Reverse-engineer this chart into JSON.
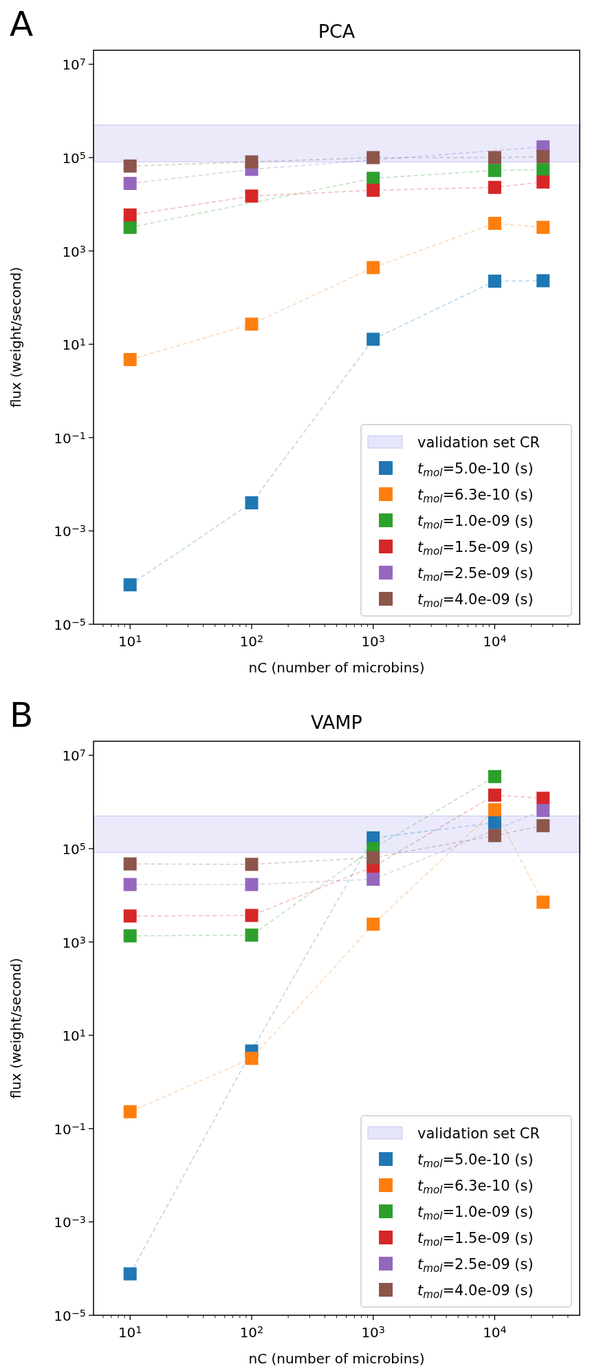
{
  "chart_data": [
    {
      "type": "line",
      "title": "PCA",
      "xlabel": "nC (number of microbins)",
      "ylabel": "flux (weight/second)",
      "annotations": [
        "A"
      ],
      "x": [
        10,
        100,
        1000,
        10000,
        25000
      ],
      "log": "xy",
      "legend": "bottom right",
      "marker": "square",
      "line_style": "dashed",
      "xlim": [
        5,
        50000
      ],
      "ylim": [
        1e-05,
        20000000.0
      ],
      "xticks": [
        {
          "value": 6,
          "label": null
        },
        {
          "value": 7,
          "label": null
        },
        {
          "value": 8,
          "label": null
        },
        {
          "value": 9,
          "label": null
        },
        {
          "value": 10,
          "label": "10$^{1}$"
        },
        {
          "value": 20,
          "label": null
        },
        {
          "value": 30,
          "label": null
        },
        {
          "value": 40,
          "label": null
        },
        {
          "value": 50,
          "label": null
        },
        {
          "value": 60,
          "label": null
        },
        {
          "value": 70,
          "label": null
        },
        {
          "value": 80,
          "label": null
        },
        {
          "value": 90,
          "label": null
        },
        {
          "value": 100,
          "label": "10$^{2}$"
        },
        {
          "value": 200,
          "label": null
        },
        {
          "value": 300,
          "label": null
        },
        {
          "value": 400,
          "label": null
        },
        {
          "value": 500,
          "label": null
        },
        {
          "value": 600,
          "label": null
        },
        {
          "value": 700,
          "label": null
        },
        {
          "value": 800,
          "label": null
        },
        {
          "value": 900,
          "label": null
        },
        {
          "value": 1000,
          "label": "10$^{3}$"
        },
        {
          "value": 2000,
          "label": null
        },
        {
          "value": 3000,
          "label": null
        },
        {
          "value": 4000,
          "label": null
        },
        {
          "value": 5000,
          "label": null
        },
        {
          "value": 6000,
          "label": null
        },
        {
          "value": 7000,
          "label": null
        },
        {
          "value": 8000,
          "label": null
        },
        {
          "value": 9000,
          "label": null
        },
        {
          "value": 10000,
          "label": "10$^{4}$"
        },
        {
          "value": 20000,
          "label": null
        },
        {
          "value": 30000,
          "label": null
        },
        {
          "value": 40000,
          "label": null
        }
      ],
      "yticks": [
        {
          "value": 1e-05,
          "label": "10$^{−5}$"
        },
        {
          "value": 0.001,
          "label": "10$^{−3}$"
        },
        {
          "value": 0.1,
          "label": "10$^{−1}$"
        },
        {
          "value": 10,
          "label": "10$^{1}$"
        },
        {
          "value": 1000,
          "label": "10$^{3}$"
        },
        {
          "value": 100000,
          "label": "10$^{5}$"
        },
        {
          "value": 10000000,
          "label": "10$^{7}$"
        }
      ],
      "bands": [
        {
          "axis": "y",
          "from": 81000,
          "to": 500000,
          "label": "validation set CR",
          "color": "#e6e6fa"
        }
      ],
      "series": [
        {
          "name": "t$_{mol}$=5.0e-10 (s)",
          "color": "#1f77b4",
          "values": [
            7e-05,
            0.004,
            12.8,
            225,
            230
          ]
        },
        {
          "name": "t$_{mol}$=6.3e-10 (s)",
          "color": "#ff7f0e",
          "values": [
            4.7,
            27,
            440,
            3900,
            3200
          ]
        },
        {
          "name": "t$_{mol}$=1.0e-09 (s)",
          "color": "#2ca02c",
          "values": [
            3200,
            null,
            36000,
            53000,
            55000
          ]
        },
        {
          "name": "t$_{mol}$=1.5e-09 (s)",
          "color": "#d62728",
          "values": [
            5900,
            15000,
            20000,
            23000,
            30000
          ]
        },
        {
          "name": "t$_{mol}$=2.5e-09 (s)",
          "color": "#9467bd",
          "values": [
            28000,
            56000,
            null,
            null,
            170000
          ]
        },
        {
          "name": "t$_{mol}$=4.0e-09 (s)",
          "color": "#8c564b",
          "values": [
            66000,
            81000,
            100000,
            100000,
            105000
          ]
        }
      ]
    },
    {
      "type": "line",
      "title": "VAMP",
      "xlabel": "nC (number of microbins)",
      "ylabel": "flux (weight/second)",
      "annotations": [
        "B"
      ],
      "x": [
        10,
        100,
        1000,
        10000,
        25000
      ],
      "log": "xy",
      "legend": "bottom right",
      "marker": "square",
      "line_style": "dashed",
      "xlim": [
        5,
        50000
      ],
      "ylim": [
        1e-05,
        20000000.0
      ],
      "xticks": [
        {
          "value": 6,
          "label": null
        },
        {
          "value": 7,
          "label": null
        },
        {
          "value": 8,
          "label": null
        },
        {
          "value": 9,
          "label": null
        },
        {
          "value": 10,
          "label": "10$^{1}$"
        },
        {
          "value": 20,
          "label": null
        },
        {
          "value": 30,
          "label": null
        },
        {
          "value": 40,
          "label": null
        },
        {
          "value": 50,
          "label": null
        },
        {
          "value": 60,
          "label": null
        },
        {
          "value": 70,
          "label": null
        },
        {
          "value": 80,
          "label": null
        },
        {
          "value": 90,
          "label": null
        },
        {
          "value": 100,
          "label": "10$^{2}$"
        },
        {
          "value": 200,
          "label": null
        },
        {
          "value": 300,
          "label": null
        },
        {
          "value": 400,
          "label": null
        },
        {
          "value": 500,
          "label": null
        },
        {
          "value": 600,
          "label": null
        },
        {
          "value": 700,
          "label": null
        },
        {
          "value": 800,
          "label": null
        },
        {
          "value": 900,
          "label": null
        },
        {
          "value": 1000,
          "label": "10$^{3}$"
        },
        {
          "value": 2000,
          "label": null
        },
        {
          "value": 3000,
          "label": null
        },
        {
          "value": 4000,
          "label": null
        },
        {
          "value": 5000,
          "label": null
        },
        {
          "value": 6000,
          "label": null
        },
        {
          "value": 7000,
          "label": null
        },
        {
          "value": 8000,
          "label": null
        },
        {
          "value": 9000,
          "label": null
        },
        {
          "value": 10000,
          "label": "10$^{4}$"
        },
        {
          "value": 20000,
          "label": null
        },
        {
          "value": 30000,
          "label": null
        },
        {
          "value": 40000,
          "label": null
        }
      ],
      "yticks": [
        {
          "value": 1e-05,
          "label": "10$^{−5}$"
        },
        {
          "value": 0.001,
          "label": "10$^{−3}$"
        },
        {
          "value": 0.1,
          "label": "10$^{−1}$"
        },
        {
          "value": 10,
          "label": "10$^{1}$"
        },
        {
          "value": 1000,
          "label": "10$^{3}$"
        },
        {
          "value": 100000,
          "label": "10$^{5}$"
        },
        {
          "value": 10000000,
          "label": "10$^{7}$"
        }
      ],
      "bands": [
        {
          "axis": "y",
          "from": 83000,
          "to": 500000,
          "label": "validation set CR",
          "color": "#e6e6fa"
        }
      ],
      "series": [
        {
          "name": "t$_{mol}$=5.0e-10 (s)",
          "color": "#1f77b4",
          "values": [
            7.7e-05,
            4.6,
            170000,
            360000,
            null
          ]
        },
        {
          "name": "t$_{mol}$=6.3e-10 (s)",
          "color": "#ff7f0e",
          "values": [
            0.23,
            3.2,
            2400,
            680000,
            7100
          ]
        },
        {
          "name": "t$_{mol}$=1.0e-09 (s)",
          "color": "#2ca02c",
          "values": [
            1350,
            1400,
            100000,
            3500000,
            null
          ]
        },
        {
          "name": "t$_{mol}$=1.5e-09 (s)",
          "color": "#d62728",
          "values": [
            3600,
            3700,
            41000,
            1400000,
            1200000
          ]
        },
        {
          "name": "t$_{mol}$=2.5e-09 (s)",
          "color": "#9467bd",
          "values": [
            17000,
            17000,
            22000,
            null,
            660000
          ]
        },
        {
          "name": "t$_{mol}$=4.0e-09 (s)",
          "color": "#8c564b",
          "values": [
            47000,
            46000,
            64000,
            190000,
            310000
          ]
        }
      ]
    }
  ]
}
